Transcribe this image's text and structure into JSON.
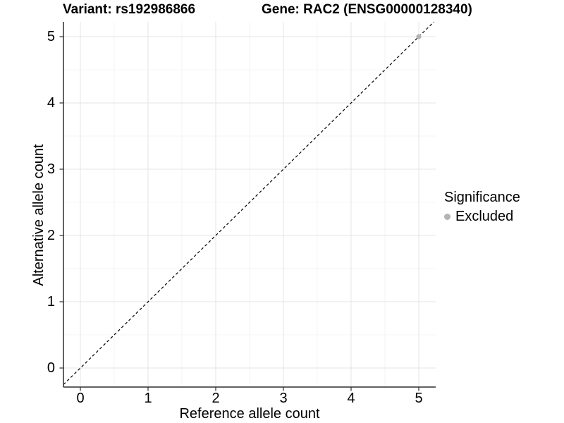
{
  "chart_data": {
    "type": "scatter",
    "titles": [
      "Variant: rs192986866",
      "Gene: RAC2 (ENSG00000128340)"
    ],
    "xlabel": "Reference allele count",
    "ylabel": "Alternative allele count",
    "x_ticks": [
      "0",
      "1",
      "2",
      "3",
      "4",
      "5"
    ],
    "y_ticks": [
      "0",
      "1",
      "2",
      "3",
      "4",
      "5"
    ],
    "xlim": [
      -0.25,
      5.25
    ],
    "ylim": [
      -0.25,
      5.25
    ],
    "grid": "major and minor light-grey gridlines on white panel",
    "reference_line": {
      "type": "identity y=x",
      "style": "dashed",
      "color": "#000000"
    },
    "series": [
      {
        "name": "Excluded",
        "color": "#b4b4b4",
        "points": [
          [
            5,
            5
          ]
        ]
      }
    ],
    "legend": {
      "position": "right",
      "title": "Significance",
      "entries": [
        {
          "label": "Excluded",
          "color": "#b4b4b4",
          "marker": "circle"
        }
      ]
    },
    "colors": {
      "axis": "#2e2e2e",
      "grid_major": "#e4e4e4",
      "grid_minor": "#f1f1f1",
      "text": "#000000"
    }
  }
}
